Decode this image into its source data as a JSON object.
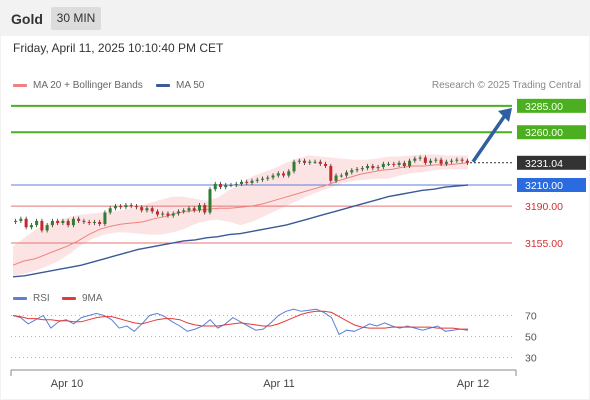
{
  "header": {
    "title": "Gold",
    "timeframe": "30 MIN"
  },
  "datetime": "Friday, April 11, 2025 10:10:40 PM CET",
  "legend": {
    "ma_bb": "MA 20 + Bollinger Bands",
    "ma50": "MA 50",
    "rsi": "RSI",
    "rsi_ma": "9MA"
  },
  "research": "Research © 2025 Trading Central",
  "colors": {
    "up": "#2e7d32",
    "down": "#c62828",
    "ma20": "#f08080",
    "ma50": "#3a5a98",
    "band": "#fde4e4",
    "resistance": "#4caf20",
    "support": "#e57373",
    "pivot": "#5b7fd6",
    "arrow": "#2f5fa0",
    "rsi": "#5b7fd6",
    "rsi_ma": "#e53935"
  },
  "chart_data": {
    "type": "candlestick",
    "y_range": [
      3120,
      3300
    ],
    "last_price": "3231.04",
    "levels": [
      {
        "value": 3285,
        "label": "3285.00",
        "kind": "resistance"
      },
      {
        "value": 3260,
        "label": "3260.00",
        "kind": "resistance"
      },
      {
        "value": 3210,
        "label": "3210.00",
        "kind": "pivot"
      },
      {
        "value": 3190,
        "label": "3190.00",
        "kind": "support"
      },
      {
        "value": 3155,
        "label": "3155.00",
        "kind": "support"
      }
    ],
    "x_labels": [
      "Apr 10",
      "Apr 11",
      "Apr 12"
    ],
    "closes": [
      3176,
      3178,
      3170,
      3172,
      3176,
      3167,
      3172,
      3176,
      3174,
      3176,
      3172,
      3178,
      3176,
      3175,
      3174,
      3175,
      3173,
      3184,
      3188,
      3190,
      3189,
      3191,
      3190,
      3189,
      3186,
      3188,
      3185,
      3182,
      3183,
      3181,
      3183,
      3185,
      3186,
      3188,
      3186,
      3191,
      3184,
      3206,
      3211,
      3208,
      3210,
      3210,
      3211,
      3213,
      3212,
      3214,
      3215,
      3216,
      3217,
      3219,
      3221,
      3219,
      3223,
      3232,
      3233,
      3231,
      3232,
      3232,
      3230,
      3228,
      3214,
      3219,
      3219,
      3222,
      3224,
      3225,
      3226,
      3228,
      3226,
      3227,
      3230,
      3230,
      3229,
      3231,
      3228,
      3233,
      3235,
      3236,
      3231,
      3233,
      3234,
      3230,
      3232,
      3233,
      3234,
      3233,
      3231
    ],
    "ma20": [
      3134,
      3138,
      3140,
      3144,
      3148,
      3152,
      3157,
      3163,
      3168,
      3171,
      3173,
      3174,
      3175,
      3178,
      3180,
      3183,
      3185,
      3186,
      3187,
      3188,
      3188,
      3189,
      3190,
      3192,
      3195,
      3198,
      3201,
      3204,
      3207,
      3210,
      3214,
      3217,
      3220,
      3222,
      3224,
      3225,
      3227,
      3228,
      3228,
      3229,
      3229,
      3230,
      3231
    ],
    "bb_upper": [
      3152,
      3160,
      3168,
      3173,
      3176,
      3180,
      3182,
      3183,
      3184,
      3185,
      3187,
      3189,
      3193,
      3196,
      3199,
      3199,
      3197,
      3195,
      3198,
      3205,
      3212,
      3218,
      3222,
      3226,
      3231,
      3235,
      3238,
      3237,
      3236,
      3235,
      3234,
      3234,
      3235,
      3237,
      3237,
      3238,
      3239,
      3239,
      3238,
      3238,
      3238
    ],
    "bb_lower": [
      3124,
      3126,
      3129,
      3133,
      3138,
      3145,
      3153,
      3159,
      3163,
      3165,
      3165,
      3164,
      3163,
      3163,
      3165,
      3168,
      3173,
      3176,
      3177,
      3175,
      3172,
      3175,
      3180,
      3185,
      3190,
      3195,
      3200,
      3204,
      3208,
      3212,
      3214,
      3215,
      3216,
      3216,
      3219,
      3221,
      3222,
      3224,
      3225,
      3225,
      3225
    ],
    "ma50": [
      3123,
      3124,
      3126,
      3128,
      3130,
      3132,
      3134,
      3137,
      3140,
      3143,
      3146,
      3149,
      3151,
      3153,
      3155,
      3157,
      3158,
      3160,
      3161,
      3163,
      3164,
      3166,
      3168,
      3170,
      3172,
      3175,
      3178,
      3181,
      3184,
      3187,
      3190,
      3193,
      3196,
      3199,
      3201,
      3203,
      3205,
      3206,
      3208,
      3209,
      3210
    ],
    "rsi_axis": [
      70,
      50,
      30
    ],
    "rsi": [
      70,
      68,
      62,
      66,
      70,
      58,
      64,
      66,
      62,
      68,
      70,
      72,
      70,
      66,
      58,
      60,
      55,
      62,
      70,
      72,
      69,
      64,
      60,
      55,
      57,
      60,
      66,
      58,
      62,
      68,
      64,
      60,
      56,
      57,
      63,
      70,
      74,
      76,
      74,
      75,
      76,
      73,
      68,
      52,
      56,
      55,
      58,
      62,
      60,
      63,
      60,
      58,
      60,
      58,
      56,
      58,
      60,
      55,
      56,
      57,
      56
    ],
    "rsi_ma": [
      70,
      69,
      67,
      67,
      66,
      66,
      65,
      65,
      64,
      64,
      66,
      68,
      69,
      69,
      67,
      65,
      63,
      62,
      64,
      66,
      67,
      67,
      66,
      63,
      61,
      60,
      60,
      60,
      61,
      62,
      63,
      62,
      61,
      60,
      60,
      62,
      65,
      68,
      71,
      73,
      74,
      74,
      73,
      69,
      65,
      61,
      59,
      58,
      58,
      58,
      59,
      59,
      59,
      59,
      59,
      59,
      58,
      58,
      58,
      57,
      57
    ]
  }
}
